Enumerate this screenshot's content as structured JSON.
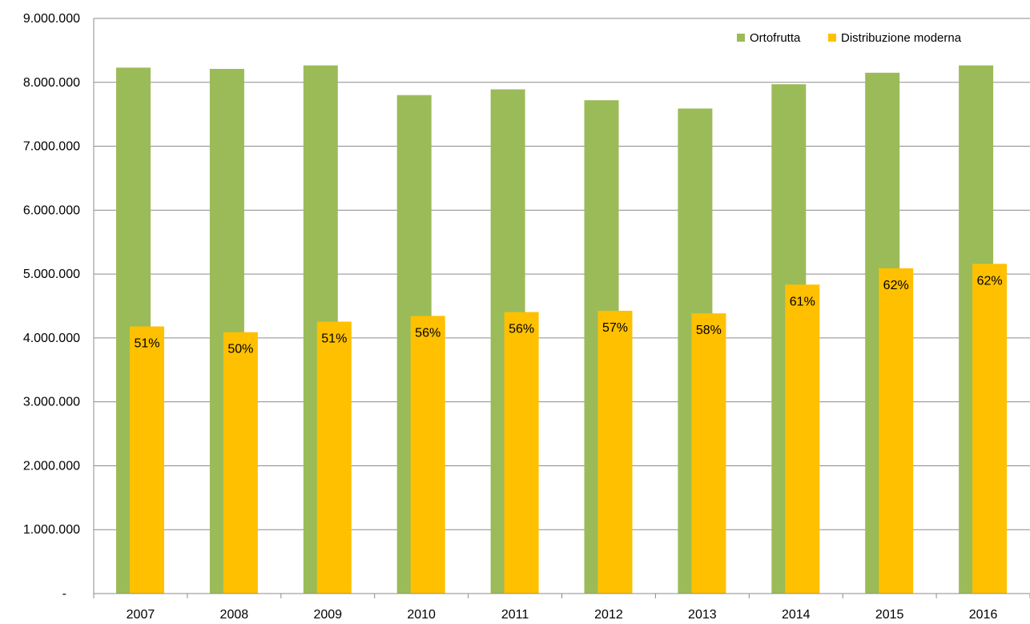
{
  "chart_data": {
    "type": "bar",
    "categories": [
      "2007",
      "2008",
      "2009",
      "2010",
      "2011",
      "2012",
      "2013",
      "2014",
      "2015",
      "2016"
    ],
    "series": [
      {
        "name": "Ortofrutta",
        "color": "#9BBB59",
        "values": [
          8230000,
          8210000,
          8265000,
          7800000,
          7890000,
          7720000,
          7590000,
          7970000,
          8150000,
          8265000
        ]
      },
      {
        "name": "Distribuzione moderna",
        "color": "#FFC000",
        "values": [
          4180000,
          4090000,
          4255000,
          4345000,
          4405000,
          4425000,
          4385000,
          4835000,
          5090000,
          5160000
        ],
        "data_labels": [
          "51%",
          "50%",
          "51%",
          "56%",
          "56%",
          "57%",
          "58%",
          "61%",
          "62%",
          "62%"
        ]
      }
    ],
    "yticks": [
      "-",
      "1.000.000",
      "2.000.000",
      "3.000.000",
      "4.000.000",
      "5.000.000",
      "6.000.000",
      "7.000.000",
      "8.000.000",
      "9.000.000"
    ],
    "ylim": [
      0,
      9000000
    ],
    "grid": true,
    "legend_position": "top-right",
    "title": "",
    "xlabel": "",
    "ylabel": ""
  }
}
